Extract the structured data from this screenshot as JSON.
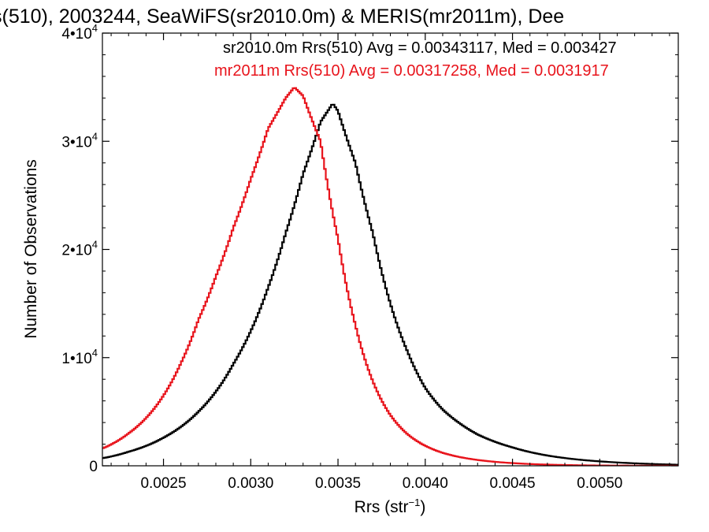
{
  "chart_data": {
    "type": "histogram-step",
    "title": "s(510), 2003244, SeaWiFS(sr2010.0m) & MERIS(mr2011m), Dee",
    "xlabel": "Rrs (str",
    "xlabel_sup": "−1",
    "xlabel_close": ")",
    "ylabel": "Number of Observations",
    "xlim": [
      0.00215,
      0.00545
    ],
    "ylim": [
      0,
      40000
    ],
    "grid": false,
    "legend_position": "top-right",
    "x_ticks": [
      {
        "value": 0.0025,
        "label": "0.0025"
      },
      {
        "value": 0.003,
        "label": "0.0030"
      },
      {
        "value": 0.0035,
        "label": "0.0035"
      },
      {
        "value": 0.004,
        "label": "0.0040"
      },
      {
        "value": 0.0045,
        "label": "0.0045"
      },
      {
        "value": 0.005,
        "label": "0.0050"
      }
    ],
    "y_ticks": [
      {
        "value": 0,
        "label": "0",
        "sup": ""
      },
      {
        "value": 10000,
        "label": "1•10",
        "sup": "4"
      },
      {
        "value": 20000,
        "label": "2•10",
        "sup": "4"
      },
      {
        "value": 30000,
        "label": "3•10",
        "sup": "4"
      },
      {
        "value": 40000,
        "label": "4•10",
        "sup": "4"
      }
    ],
    "series": [
      {
        "name": "sr2010.0m Rrs(510) Avg = 0.00343117, Med = 0.003427",
        "color": "#000000",
        "x": [
          0.00215,
          0.0023,
          0.0025,
          0.0027,
          0.0029,
          0.0031,
          0.0032,
          0.0033,
          0.0034,
          0.00347,
          0.0035,
          0.0036,
          0.0037,
          0.0038,
          0.0039,
          0.004,
          0.0041,
          0.0042,
          0.0043,
          0.0045,
          0.0047,
          0.0049,
          0.0051,
          0.0053,
          0.00545
        ],
        "y": [
          700,
          1300,
          2600,
          5000,
          9400,
          16500,
          21500,
          27000,
          31800,
          33500,
          32800,
          28000,
          21500,
          15000,
          10500,
          7200,
          5200,
          3900,
          2900,
          1700,
          950,
          540,
          310,
          170,
          100
        ]
      },
      {
        "name": "mr2011m Rrs(510) Avg = 0.00317258, Med = 0.0031917",
        "color": "#e8141c",
        "x": [
          0.00215,
          0.0023,
          0.0025,
          0.0026,
          0.0027,
          0.0028,
          0.0029,
          0.003,
          0.0031,
          0.0032,
          0.00325,
          0.0033,
          0.0034,
          0.0035,
          0.0036,
          0.0037,
          0.0038,
          0.0039,
          0.004,
          0.0041,
          0.0042,
          0.0043,
          0.0045,
          0.0047,
          0.005,
          0.00545
        ],
        "y": [
          1600,
          3000,
          6500,
          9500,
          13500,
          17500,
          22000,
          26500,
          31200,
          34000,
          35000,
          34200,
          30000,
          21000,
          13000,
          7800,
          4700,
          2900,
          1850,
          1200,
          800,
          540,
          250,
          110,
          30,
          5
        ]
      }
    ]
  }
}
